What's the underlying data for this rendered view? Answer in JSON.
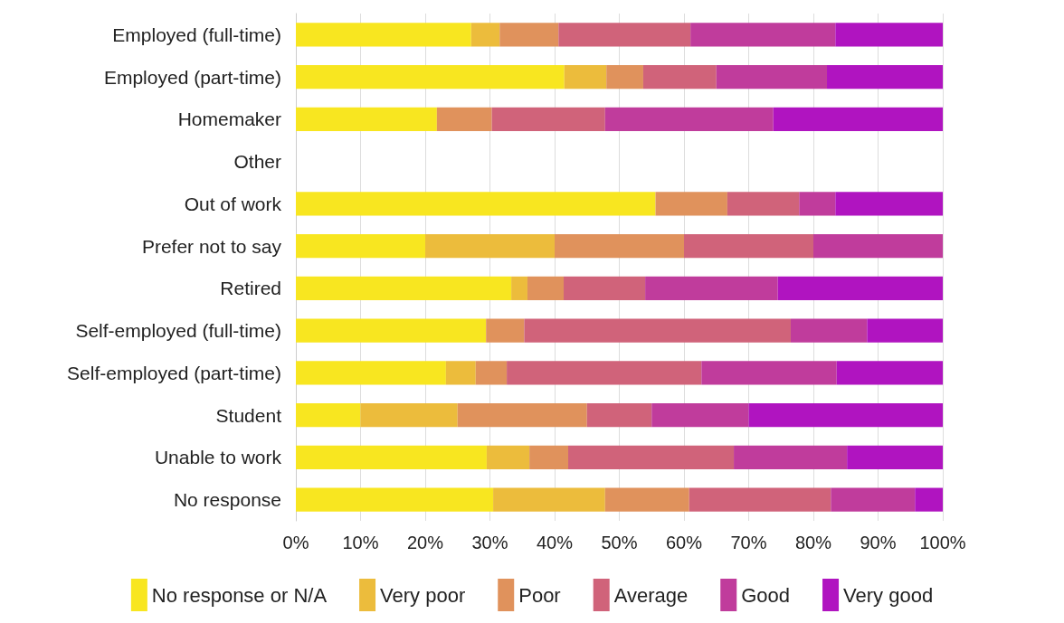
{
  "chart_data": {
    "type": "bar",
    "orientation": "horizontal",
    "stacked": true,
    "categories": [
      "Employed (full-time)",
      "Employed (part-time)",
      "Homemaker",
      "Other",
      "Out of work",
      "Prefer not to say",
      "Retired",
      "Self-employed (full-time)",
      "Self-employed (part-time)",
      "Student",
      "Unable to work",
      "No response"
    ],
    "series": [
      {
        "name": "No response or N/A",
        "color": "#f8e620",
        "values": [
          27.1,
          41.5,
          21.8,
          null,
          55.6,
          20,
          33.3,
          29.4,
          23.2,
          10,
          29.5,
          30.5
        ]
      },
      {
        "name": "Very poor",
        "color": "#ecbc3c",
        "values": [
          4.4,
          6.5,
          0,
          null,
          0,
          20,
          2.5,
          0,
          4.6,
          15,
          6.6,
          17.3
        ]
      },
      {
        "name": "Poor",
        "color": "#e0925c",
        "values": [
          9.1,
          5.7,
          8.5,
          null,
          11.1,
          20,
          5.6,
          5.9,
          4.8,
          20,
          6.0,
          13.0
        ]
      },
      {
        "name": "Average",
        "color": "#d0637a",
        "values": [
          20.4,
          11.3,
          17.5,
          null,
          11.1,
          20,
          12.6,
          41.2,
          30.1,
          10,
          25.6,
          21.9
        ]
      },
      {
        "name": "Good",
        "color": "#c03c9c",
        "values": [
          22.4,
          17.1,
          26.0,
          null,
          5.6,
          20,
          20.5,
          11.8,
          20.9,
          15,
          17.5,
          13.0
        ]
      },
      {
        "name": "Very good",
        "color": "#b014c0",
        "values": [
          16.6,
          17.9,
          26.2,
          null,
          16.7,
          0,
          25.5,
          11.7,
          16.4,
          30,
          14.8,
          4.3
        ]
      }
    ],
    "xlim": [
      0,
      100
    ],
    "xticks": [
      {
        "value": 0,
        "label": "0%"
      },
      {
        "value": 10,
        "label": "10%"
      },
      {
        "value": 20,
        "label": "20%"
      },
      {
        "value": 30,
        "label": "30%"
      },
      {
        "value": 40,
        "label": "40%"
      },
      {
        "value": 50,
        "label": "50%"
      },
      {
        "value": 60,
        "label": "60%"
      },
      {
        "value": 70,
        "label": "70%"
      },
      {
        "value": 80,
        "label": "80%"
      },
      {
        "value": 90,
        "label": "90%"
      },
      {
        "value": 100,
        "label": "100%"
      }
    ],
    "grid": "x",
    "legend": "bottom"
  }
}
